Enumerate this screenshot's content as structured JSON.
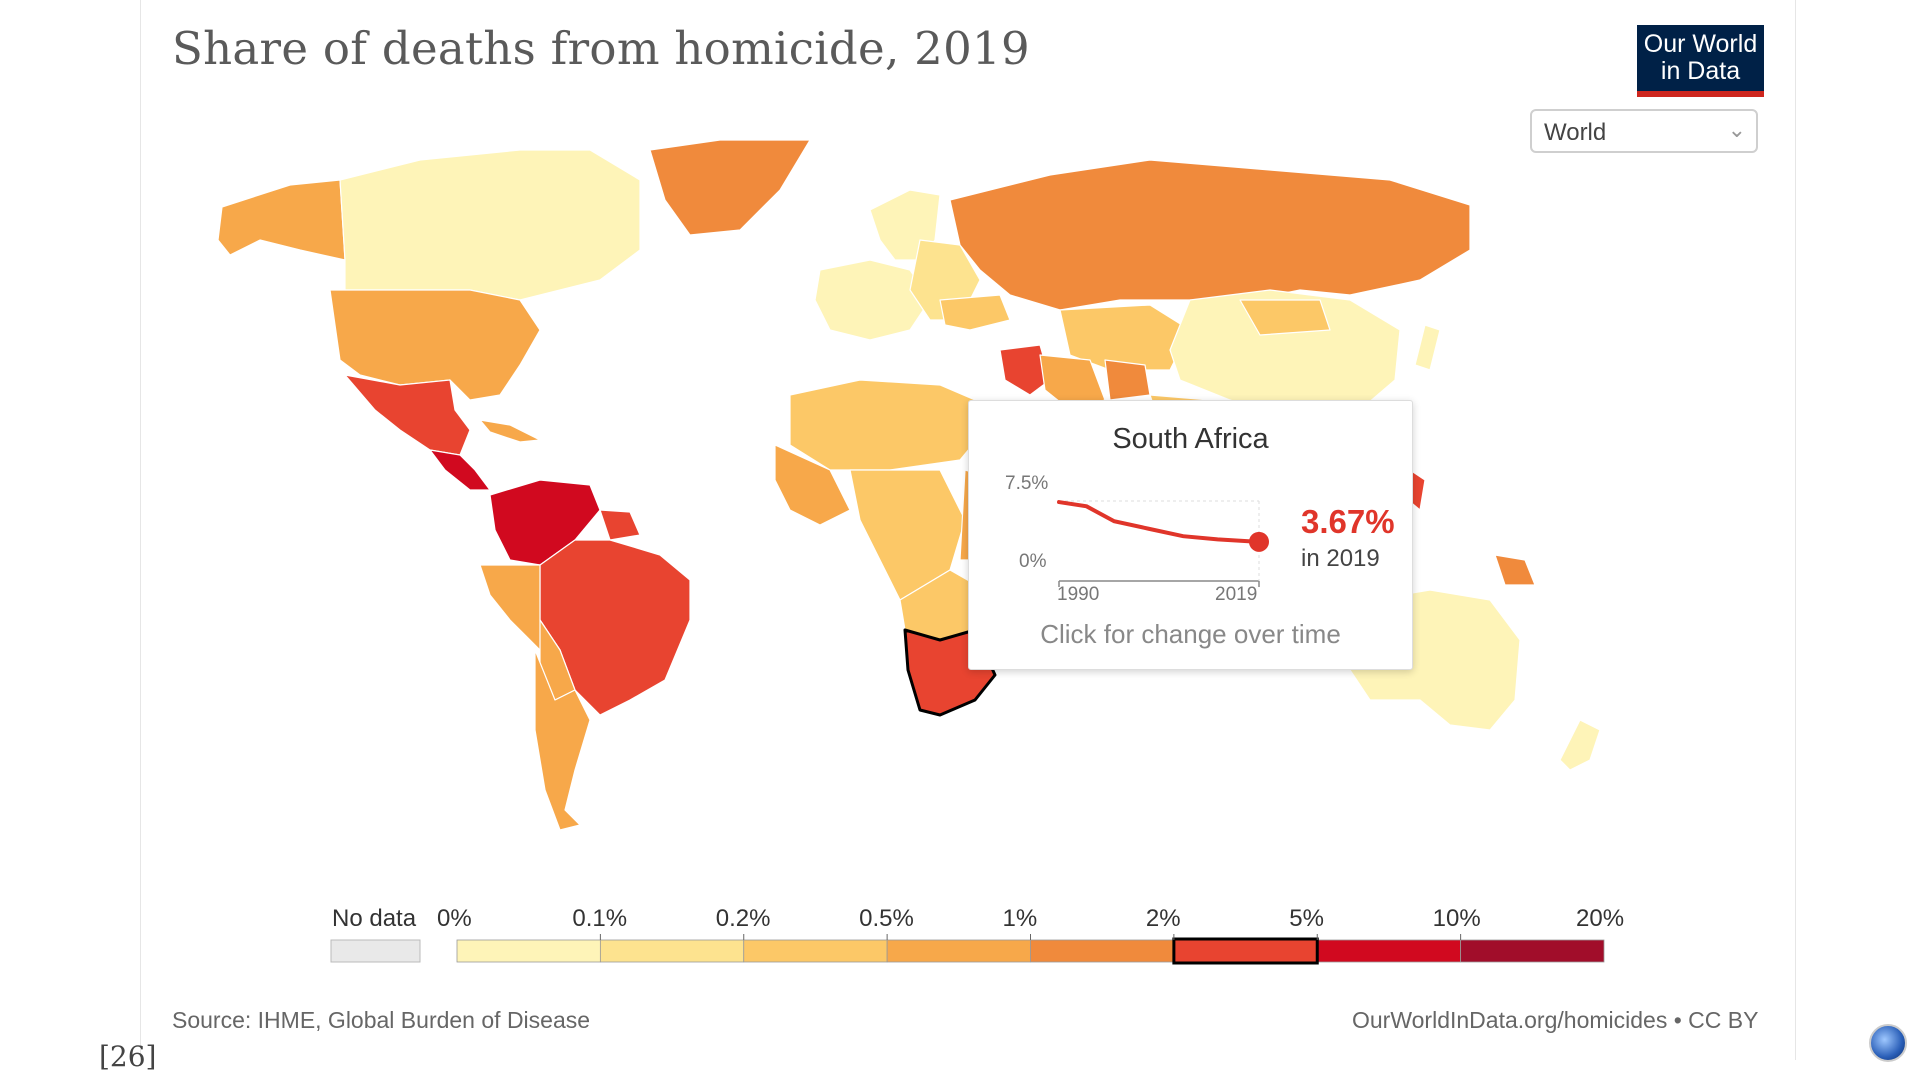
{
  "title": "Share of deaths from homicide, 2019",
  "logo": {
    "line1": "Our World",
    "line2": "in Data"
  },
  "region_select": {
    "value": "World"
  },
  "legend": {
    "no_data_label": "No data",
    "bins": [
      "0%",
      "0.1%",
      "0.2%",
      "0.5%",
      "1%",
      "2%",
      "5%",
      "10%",
      "20%"
    ],
    "colors": [
      "#fef4b8",
      "#fde38f",
      "#fcc867",
      "#f7a84a",
      "#f08a3c",
      "#e84430",
      "#d1091f",
      "#a10d2a"
    ],
    "no_data_color": "#e9e9e9",
    "highlighted_bin": "2% – 5%"
  },
  "tooltip": {
    "country": "South Africa",
    "value": "3.67%",
    "year_label": "in 2019",
    "y_max_label": "7.5%",
    "y_min_label": "0%",
    "x_start_label": "1990",
    "x_end_label": "2019",
    "footer": "Click for change over time",
    "sparkline": [
      {
        "year": 1990,
        "value": 7.4
      },
      {
        "year": 1994,
        "value": 7.0
      },
      {
        "year": 1998,
        "value": 5.6
      },
      {
        "year": 2003,
        "value": 4.9
      },
      {
        "year": 2008,
        "value": 4.2
      },
      {
        "year": 2013,
        "value": 3.9
      },
      {
        "year": 2019,
        "value": 3.67
      }
    ]
  },
  "source": "Source: IHME, Global Burden of Disease",
  "url": "OurWorldInData.org/homicides • CC BY",
  "reference": "[26]"
}
